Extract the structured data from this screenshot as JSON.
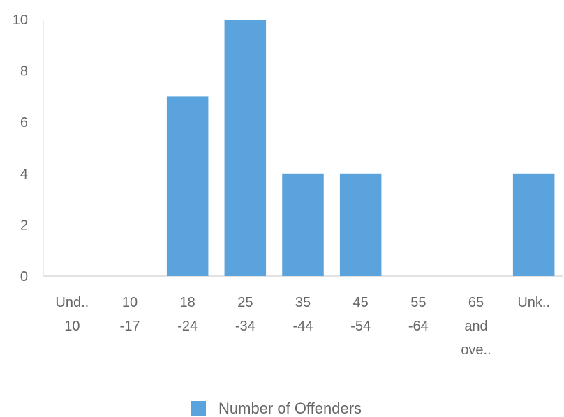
{
  "chart_data": {
    "type": "bar",
    "categories": [
      [
        "Und..",
        "10"
      ],
      [
        "10",
        "-17"
      ],
      [
        "18",
        "-24"
      ],
      [
        "25",
        "-34"
      ],
      [
        "35",
        "-44"
      ],
      [
        "45",
        "-54"
      ],
      [
        "55",
        "-64"
      ],
      [
        "65",
        "and",
        "ove.."
      ],
      [
        "Unk.."
      ]
    ],
    "series": [
      {
        "name": "Number of Offenders",
        "values": [
          0,
          0,
          7,
          10,
          4,
          4,
          0,
          0,
          4
        ],
        "color": "#5ba3dc"
      }
    ],
    "ylim": [
      0,
      10
    ],
    "yticks": [
      "0",
      "2",
      "4",
      "6",
      "8",
      "10"
    ],
    "grid": false,
    "legend": "bottom"
  }
}
